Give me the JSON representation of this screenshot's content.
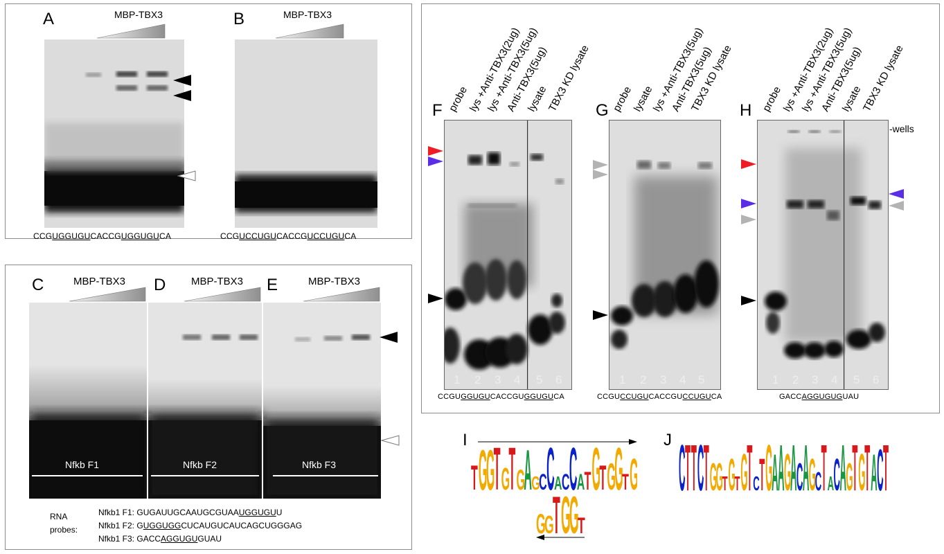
{
  "panels": {
    "A": {
      "letter": "A",
      "protein": "MBP-TBX3",
      "seq_pre": "CCG",
      "seq_u1": "UGGUGU",
      "seq_mid": "CACCG",
      "seq_u2": "UGGUGU",
      "seq_post": "CA"
    },
    "B": {
      "letter": "B",
      "protein": "MBP-TBX3",
      "seq_pre": "CCG",
      "seq_u1": "UCCUGU",
      "seq_mid": "CACCG",
      "seq_u2": "UCCUGU",
      "seq_post": "CA"
    },
    "C": {
      "letter": "C",
      "protein": "MBP-TBX3",
      "probe_label": "Nfkb F1"
    },
    "D": {
      "letter": "D",
      "protein": "MBP-TBX3",
      "probe_label": "Nfkb F2"
    },
    "E": {
      "letter": "E",
      "protein": "MBP-TBX3",
      "probe_label": "Nfkb F3"
    },
    "F": {
      "letter": "F",
      "lanes": [
        "probe",
        "lys +Anti-TBX3(2ug)",
        "lys +Anti-TBX3(5ug)",
        "Anti-TBX3(5ug)",
        "lysate",
        "TBX3 KD lysate"
      ],
      "lane_numbers": [
        "1",
        "2",
        "3",
        "4",
        "5",
        "6"
      ],
      "seq_pre": "CCGU",
      "seq_u1": "GGUGU",
      "seq_mid": "CACCGU",
      "seq_u2": "GGUGU",
      "seq_post": "CA"
    },
    "G": {
      "letter": "G",
      "lanes": [
        "probe",
        "lysate",
        "lys +Anti-TBX3(5ug)",
        "Anti-TBX3(5ug)",
        "TBX3 KD lysate"
      ],
      "lane_numbers": [
        "1",
        "2",
        "3",
        "4",
        "5"
      ],
      "seq_pre": "CCGU",
      "seq_u1": "CCUGU",
      "seq_mid": "CACCGU",
      "seq_u2": "CCUGU",
      "seq_post": "CA"
    },
    "H": {
      "letter": "H",
      "lanes": [
        "probe",
        "lys +Anti-TBX3(2ug)",
        "lys +Anti-TBX3(5ug)",
        "Anti-TBX3(5ug)",
        "lysate",
        "TBX3 KD lysate"
      ],
      "lane_numbers": [
        "1",
        "2",
        "3",
        "4",
        "5",
        "6"
      ],
      "wells_label": "-wells",
      "seq_pre": "GACC",
      "seq_u1": "AGGUGUG",
      "seq_post": "UAU"
    },
    "I": {
      "letter": "I"
    },
    "J": {
      "letter": "J"
    }
  },
  "rna_probes": {
    "label_line1": "RNA",
    "label_line2": "probes:",
    "f1_name": "Nfkb1 F1:",
    "f1_pre": "GUGAUUGCAAUGCGUAA",
    "f1_u": "UGGUGU",
    "f1_post": "U",
    "f2_name": "Nfkb1 F2:",
    "f2_pre": "G",
    "f2_u": "UGGUGG",
    "f2_post": "CUCAUGUCAUCAGCUGGGAG",
    "f3_name": "Nfkb1 F3:",
    "f3_pre": "GACC",
    "f3_u": "AGGUGU",
    "f3_post": "GUAU"
  },
  "logo_I_top": "TGGTGTGAGCCACCATGTGGTG",
  "logo_I_bottom": "GGTGGT",
  "logo_J": "CTTCTGGTGTGTCTGAAGACAGCTACAGTGTACT",
  "colors": {
    "red_arrow": "#ee1c24",
    "purple_arrow": "#5b2ee6",
    "gray_arrow": "#b3b3b3",
    "black_arrow": "#000000",
    "A": "#1a9641",
    "C": "#0b22c8",
    "G": "#f2a900",
    "T": "#d7191c"
  }
}
